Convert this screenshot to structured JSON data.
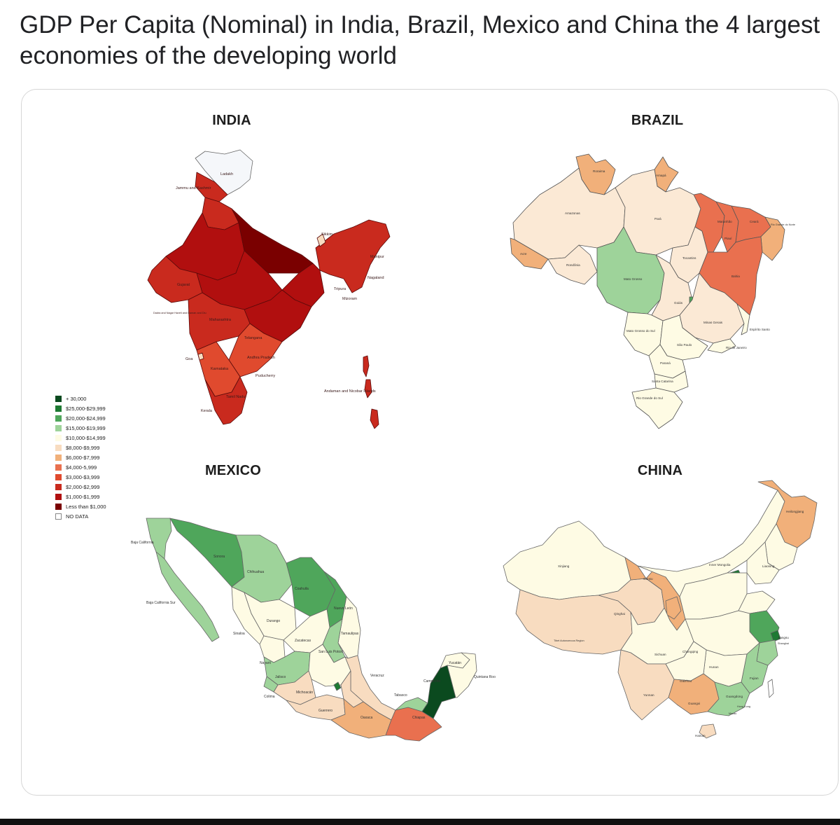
{
  "post": {
    "title": "GDP Per Capita (Nominal) in India, Brazil, Mexico and China the 4 largest economies of the developing world"
  },
  "legend": [
    {
      "label": "+ 30,000",
      "color": "#0b4a1f"
    },
    {
      "label": "$25,000-$29,999",
      "color": "#1e7a33"
    },
    {
      "label": "$20,000-$24,999",
      "color": "#4fa65b"
    },
    {
      "label": "$15,000-$19,999",
      "color": "#9ed39a"
    },
    {
      "label": "$10,000-$14,999",
      "color": "#fefbe4"
    },
    {
      "label": "$8,000-$9,999",
      "color": "#f8dcc0"
    },
    {
      "label": "$6,000-$7,999",
      "color": "#f1b07a"
    },
    {
      "label": "$4,000-5,999",
      "color": "#e9704f"
    },
    {
      "label": "$3,000-$3,999",
      "color": "#e04a2e"
    },
    {
      "label": "$2,000-$2,999",
      "color": "#c92a1e"
    },
    {
      "label": "$1,000-$1,999",
      "color": "#b10f0f"
    },
    {
      "label": "Less than $1,000",
      "color": "#7a0000"
    },
    {
      "label": "NO DATA",
      "color": "#ffffff"
    }
  ],
  "maps": {
    "india": {
      "title": "INDIA",
      "regions": [
        "Ladakh",
        "Jammu and Kashmir",
        "Sikkim",
        "Gujarat",
        "Dadra and Nagar Haveli and Daman and Diu",
        "Maharashtra",
        "Telangana",
        "Goa",
        "Karnataka",
        "Andhra Pradesh",
        "Kerala",
        "Tamil Nadu",
        "Puducherry",
        "Andaman and Nicobar Islands",
        "Tripura",
        "Mizoram",
        "Nagaland",
        "Manipur"
      ]
    },
    "brazil": {
      "title": "BRAZIL",
      "regions": [
        "Roraima",
        "Amapá",
        "Amazonas",
        "Pará",
        "Maranhão",
        "Ceará",
        "Rio Grande do Norte",
        "Piauí",
        "Acre",
        "Rondônia",
        "Mato Grosso",
        "Tocantins",
        "Bahia",
        "Goiás",
        "Minas Gerais",
        "Espírito Santo",
        "Mato Grosso do Sul",
        "São Paulo",
        "Rio de Janeiro",
        "Paraná",
        "Santa Catarina",
        "Rio Grande do Sul"
      ]
    },
    "mexico": {
      "title": "MEXICO",
      "regions": [
        "Baja California",
        "Sonora",
        "Chihuahua",
        "Coahuila",
        "Baja California Sur",
        "Nuevo León",
        "Durango",
        "Sinaloa",
        "Zacatecas",
        "Tamaulipas",
        "San Luis Potosí",
        "Nayarit",
        "Jalisco",
        "Veracruz",
        "Colima",
        "Michoacán",
        "Guerrero",
        "Oaxaca",
        "Chiapas",
        "Tabasco",
        "Yucatán",
        "Quintana Roo",
        "Campeche"
      ]
    },
    "china": {
      "title": "CHINA",
      "regions": [
        "Heilongjiang",
        "Inner Mongolia",
        "Xinjiang",
        "Gansu",
        "Liaoning",
        "Qinghai",
        "Tibet Autonomous Region",
        "Jiangsu",
        "Shanghai",
        "Sichuan",
        "Chongqing",
        "Yunnan",
        "Guizhou",
        "Hunan",
        "Guangxi",
        "Guangdong",
        "Fujian",
        "Hong Kong",
        "Macau",
        "Hainan"
      ]
    }
  }
}
